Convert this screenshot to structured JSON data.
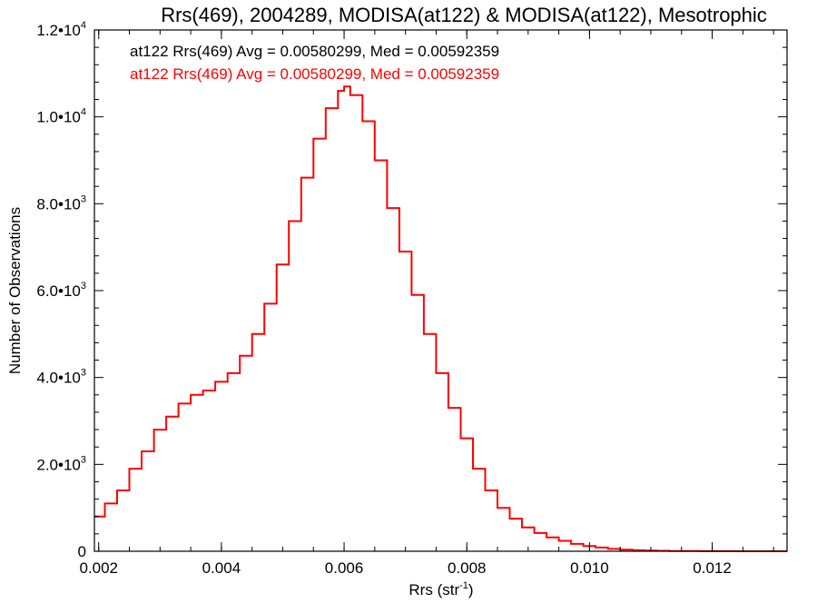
{
  "chart_data": {
    "type": "line",
    "title": "Rrs(469), 2004289, MODISA(at122) & MODISA(at122), Mesotrophic",
    "xlabel": "Rrs (str",
    "xlabel_sup": "-1",
    "xlabel_close": ")",
    "ylabel": "Number of Observations",
    "xlim": [
      0.00193,
      0.01322
    ],
    "ylim": [
      0,
      12000
    ],
    "grid": false,
    "legend_position": "top-left",
    "x_ticks": [
      {
        "value": 0.002,
        "label": "0.002"
      },
      {
        "value": 0.004,
        "label": "0.004"
      },
      {
        "value": 0.006,
        "label": "0.006"
      },
      {
        "value": 0.008,
        "label": "0.008"
      },
      {
        "value": 0.01,
        "label": "0.010"
      },
      {
        "value": 0.012,
        "label": "0.012"
      }
    ],
    "y_ticks": [
      {
        "value": 0,
        "mantissa": "0",
        "exp": ""
      },
      {
        "value": 2000,
        "mantissa": "2.0•10",
        "exp": "3"
      },
      {
        "value": 4000,
        "mantissa": "4.0•10",
        "exp": "3"
      },
      {
        "value": 6000,
        "mantissa": "6.0•10",
        "exp": "3"
      },
      {
        "value": 8000,
        "mantissa": "8.0•10",
        "exp": "3"
      },
      {
        "value": 10000,
        "mantissa": "1.0•10",
        "exp": "4"
      },
      {
        "value": 12000,
        "mantissa": "1.2•10",
        "exp": "4"
      }
    ],
    "legend_entries": [
      {
        "text": "at122 Rrs(469) Avg = 0.00580299, Med = 0.00592359",
        "color": "#000000"
      },
      {
        "text": "at122 Rrs(469) Avg = 0.00580299, Med = 0.00592359",
        "color": "#ff0000"
      }
    ],
    "series": [
      {
        "color": "#ff0000",
        "style": "histogram-step",
        "x": [
          0.00193,
          0.0021,
          0.0023,
          0.0025,
          0.0027,
          0.0029,
          0.0031,
          0.0033,
          0.0035,
          0.0037,
          0.0039,
          0.0041,
          0.0043,
          0.0045,
          0.0047,
          0.0049,
          0.0051,
          0.0053,
          0.0055,
          0.0057,
          0.0059,
          0.006,
          0.0061,
          0.0063,
          0.0065,
          0.0067,
          0.0069,
          0.0071,
          0.0073,
          0.0075,
          0.0077,
          0.0079,
          0.0081,
          0.0083,
          0.0085,
          0.0087,
          0.0089,
          0.0091,
          0.0093,
          0.0095,
          0.0097,
          0.0099,
          0.0101,
          0.0103,
          0.0105,
          0.0107,
          0.0109,
          0.0111,
          0.0113,
          0.0115,
          0.0118,
          0.0121,
          0.0124,
          0.0127,
          0.0132
        ],
        "values": [
          800,
          1100,
          1400,
          1900,
          2300,
          2800,
          3100,
          3400,
          3600,
          3700,
          3900,
          4100,
          4500,
          5000,
          5700,
          6600,
          7600,
          8600,
          9500,
          10200,
          10600,
          10700,
          10500,
          9900,
          9000,
          7900,
          6900,
          5900,
          5000,
          4100,
          3300,
          2600,
          1900,
          1400,
          1000,
          750,
          550,
          420,
          320,
          240,
          170,
          120,
          85,
          55,
          35,
          22,
          15,
          10,
          7,
          5,
          3,
          2,
          1,
          1,
          0
        ]
      }
    ]
  }
}
